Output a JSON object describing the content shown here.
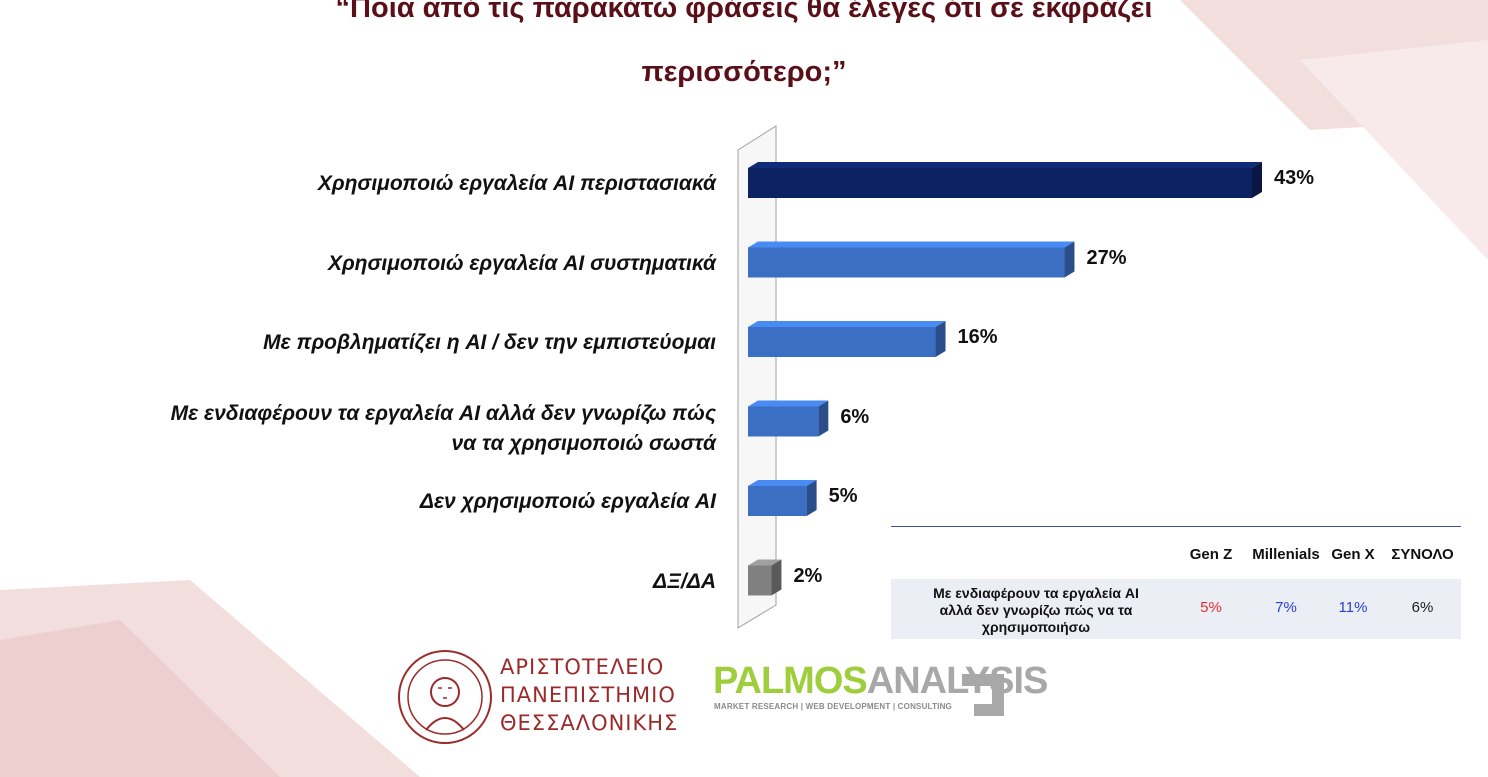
{
  "title": {
    "line1": "“Ποια από τις παρακάτω φράσεις θα έλεγες ότι σε εκφράζει",
    "line2": "περισσότερο;”"
  },
  "chart_data": {
    "type": "bar",
    "orientation": "horizontal",
    "categories": [
      "Χρησιμοποιώ εργαλεία AI περιστασιακά",
      "Χρησιμοποιώ εργαλεία AI συστηματικά",
      "Με προβληματίζει η AI / δεν την εμπιστεύομαι",
      "Με ενδιαφέρουν τα εργαλεία AI αλλά δεν γνωρίζω πώς να τα χρησιμοποιώ σωστά",
      "Δεν χρησιμοποιώ εργαλεία AI",
      "ΔΞ/ΔΑ"
    ],
    "category_lines": [
      [
        "Χρησιμοποιώ εργαλεία AI περιστασιακά"
      ],
      [
        "Χρησιμοποιώ εργαλεία AI συστηματικά"
      ],
      [
        "Με προβληματίζει η AI / δεν την εμπιστεύομαι"
      ],
      [
        "Με ενδιαφέρουν τα εργαλεία AI αλλά δεν γνωρίζω πώς",
        "να τα χρησιμοποιώ σωστά"
      ],
      [
        "Δεν χρησιμοποιώ εργαλεία AI"
      ],
      [
        "ΔΞ/ΔΑ"
      ]
    ],
    "values": [
      43,
      27,
      16,
      6,
      5,
      2
    ],
    "value_labels": [
      "43%",
      "27%",
      "16%",
      "6%",
      "5%",
      "2%"
    ],
    "bar_colors": [
      "#0d2260",
      "#3a6fc4",
      "#3a6fc4",
      "#3a6fc4",
      "#3a6fc4",
      "#808080"
    ],
    "xlim": [
      0,
      43
    ],
    "grid": false
  },
  "table": {
    "headers": [
      "Gen Z",
      "Millenials",
      "Gen X",
      "ΣΥΝΟΛΟ"
    ],
    "row_label_lines": [
      "Με ενδιαφέρουν τα εργαλεία AI",
      "αλλά δεν γνωρίζω πώς να τα",
      "χρησιμοποιήσω"
    ],
    "values": [
      "5%",
      "7%",
      "11%",
      "6%"
    ],
    "value_colors": [
      "#e03030",
      "#2a3fd0",
      "#2a3fd0",
      "#222222"
    ]
  },
  "logos": {
    "university": [
      "ΑΡΙΣΤΟΤΕΛΕΙΟ",
      "ΠΑΝΕΠΙΣΤΗΜΙΟ",
      "ΘΕΣΣΑΛΟΝΙΚΗΣ"
    ],
    "palmos_main_1": "PALMOS",
    "palmos_main_2": "ANALYSIS",
    "palmos_sub": "MARKET RESEARCH | WEB DEVELOPMENT | CONSULTING"
  },
  "colors": {
    "title": "#5a1018",
    "background_shape": "#f2dcdc"
  }
}
